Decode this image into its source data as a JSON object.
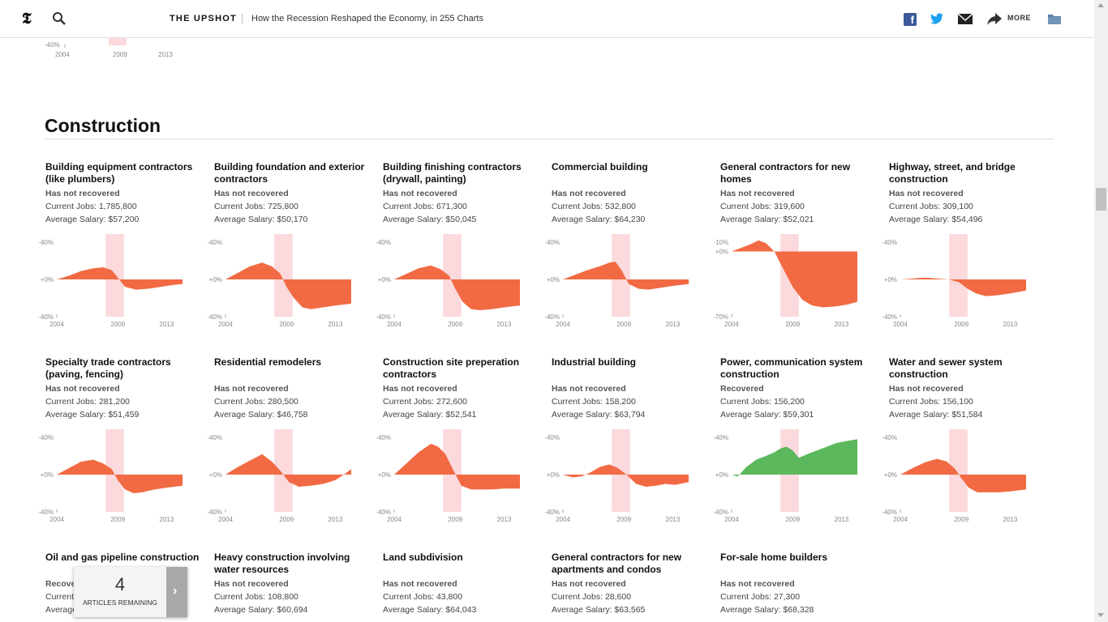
{
  "header": {
    "section": "THE UPSHOT",
    "headline": "How the Recession Reshaped the Economy, in 255 Charts",
    "more_label": "MORE",
    "icons": [
      "nyt-logo-icon",
      "search-icon",
      "facebook-icon",
      "twitter-icon",
      "mail-icon",
      "share-icon",
      "folder-icon"
    ]
  },
  "partial_top": {
    "ytick": "-40%",
    "xticks": [
      "2004",
      "2009",
      "2013"
    ]
  },
  "section": {
    "title": "Construction"
  },
  "colors": {
    "decline": "#f26a43",
    "recovered": "#5cb85c",
    "recession": "#fbd9dc"
  },
  "chart_data": [
    {
      "type": "area",
      "title": "Building equipment contractors (like plumbers)",
      "status": "Has not recovered",
      "jobs": "Current Jobs: 1,785,800",
      "salary": "Average Salary: $57,200",
      "yticks": [
        "+40%",
        "+0%",
        "-40%"
      ],
      "ylim": [
        -40,
        40
      ],
      "xticks": [
        "2004",
        "2009",
        "2013"
      ],
      "xlim": [
        2004,
        2014.3
      ],
      "recession": [
        2008,
        2009.5
      ],
      "x": [
        2004,
        2005,
        2006,
        2007,
        2007.8,
        2008.5,
        2009,
        2009.6,
        2010.5,
        2011.5,
        2012.5,
        2013.5,
        2014.3
      ],
      "values": [
        0,
        4,
        9,
        12,
        13,
        10,
        2,
        -8,
        -11,
        -10,
        -8,
        -6,
        -5
      ]
    },
    {
      "type": "area",
      "title": "Building foundation and exterior contractors",
      "status": "Has not recovered",
      "jobs": "Current Jobs: 725,800",
      "salary": "Average Salary: $50,170",
      "yticks": [
        "+40%",
        "+0%",
        "-40%"
      ],
      "ylim": [
        -40,
        40
      ],
      "xticks": [
        "2004",
        "2009",
        "2013"
      ],
      "xlim": [
        2004,
        2014.3
      ],
      "recession": [
        2008,
        2009.5
      ],
      "x": [
        2004,
        2005,
        2006,
        2007,
        2007.8,
        2008.5,
        2009,
        2009.6,
        2010.3,
        2011,
        2012,
        2013,
        2014.3
      ],
      "values": [
        0,
        7,
        14,
        18,
        14,
        6,
        -8,
        -20,
        -30,
        -32,
        -30,
        -28,
        -26
      ]
    },
    {
      "type": "area",
      "title": "Building finishing contractors (drywall, painting)",
      "status": "Has not recovered",
      "jobs": "Current Jobs: 671,300",
      "salary": "Average Salary: $50,045",
      "yticks": [
        "+40%",
        "+0%",
        "-40%"
      ],
      "ylim": [
        -40,
        40
      ],
      "xticks": [
        "2004",
        "2009",
        "2013"
      ],
      "xlim": [
        2004,
        2014.3
      ],
      "recession": [
        2008,
        2009.5
      ],
      "x": [
        2004,
        2005,
        2006,
        2007,
        2007.8,
        2008.5,
        2009,
        2009.6,
        2010.3,
        2011,
        2012,
        2013,
        2014.3
      ],
      "values": [
        0,
        6,
        12,
        15,
        11,
        4,
        -10,
        -24,
        -32,
        -33,
        -32,
        -30,
        -28
      ]
    },
    {
      "type": "area",
      "title": "Commercial building",
      "status": "Has not recovered",
      "jobs": "Current Jobs: 532,800",
      "salary": "Average Salary: $64,230",
      "yticks": [
        "+40%",
        "+0%",
        "-40%"
      ],
      "ylim": [
        -40,
        40
      ],
      "xticks": [
        "2004",
        "2009",
        "2013"
      ],
      "xlim": [
        2004,
        2014.3
      ],
      "recession": [
        2008,
        2009.5
      ],
      "x": [
        2004,
        2005,
        2006,
        2007,
        2007.8,
        2008.3,
        2008.8,
        2009.4,
        2010.2,
        2011,
        2012,
        2013,
        2014.3
      ],
      "values": [
        0,
        5,
        10,
        14,
        18,
        19,
        10,
        -5,
        -10,
        -11,
        -9,
        -7,
        -5
      ]
    },
    {
      "type": "area",
      "title": "General contractors for new homes",
      "status": "Has not recovered",
      "jobs": "Current Jobs: 319,600",
      "salary": "Average Salary: $52,021",
      "yticks": [
        "+10%",
        "+0%",
        "-70%"
      ],
      "ylim": [
        -70,
        10
      ],
      "xticks": [
        "2004",
        "2009",
        "2013"
      ],
      "xlim": [
        2004,
        2014.3
      ],
      "recession": [
        2008,
        2009.5
      ],
      "x": [
        2004,
        2004.8,
        2005.6,
        2006.2,
        2006.8,
        2007.5,
        2008.2,
        2009,
        2009.8,
        2010.6,
        2011.5,
        2012.5,
        2013.5,
        2014.3
      ],
      "values": [
        0,
        4,
        8,
        12,
        9,
        0,
        -18,
        -38,
        -52,
        -58,
        -60,
        -59,
        -57,
        -54
      ]
    },
    {
      "type": "area",
      "title": "Highway, street, and bridge construction",
      "status": "Has not recovered",
      "jobs": "Current Jobs: 309,100",
      "salary": "Average Salary: $54,496",
      "yticks": [
        "+40%",
        "+0%",
        "-40%"
      ],
      "ylim": [
        -40,
        40
      ],
      "xticks": [
        "2004",
        "2009",
        "2013"
      ],
      "xlim": [
        2004,
        2014.3
      ],
      "recession": [
        2008,
        2009.5
      ],
      "x": [
        2004,
        2005,
        2006,
        2007,
        2008,
        2008.8,
        2009.5,
        2010.2,
        2011,
        2012,
        2013,
        2014.3
      ],
      "values": [
        0,
        1,
        2,
        1,
        0,
        -3,
        -10,
        -15,
        -18,
        -17,
        -15,
        -12
      ]
    },
    {
      "type": "area",
      "title": "Specialty trade contractors (paving, fencing)",
      "status": "Has not recovered",
      "jobs": "Current Jobs: 281,200",
      "salary": "Average Salary: $51,459",
      "yticks": [
        "+40%",
        "+0%",
        "-40%"
      ],
      "ylim": [
        -40,
        40
      ],
      "xticks": [
        "2004",
        "2009",
        "2013"
      ],
      "xlim": [
        2004,
        2014.3
      ],
      "recession": [
        2008,
        2009.5
      ],
      "x": [
        2004,
        2005,
        2006,
        2007,
        2007.8,
        2008.5,
        2009,
        2009.6,
        2010.3,
        2011,
        2012,
        2013,
        2014.3
      ],
      "values": [
        0,
        7,
        14,
        16,
        12,
        6,
        -6,
        -16,
        -20,
        -19,
        -16,
        -14,
        -12
      ]
    },
    {
      "type": "area",
      "title": "Residential remodelers",
      "status": "Has not recovered",
      "jobs": "Current Jobs: 280,500",
      "salary": "Average Salary: $46,758",
      "yticks": [
        "+40%",
        "+0%",
        "-40%"
      ],
      "ylim": [
        -40,
        40
      ],
      "xticks": [
        "2004",
        "2009",
        "2013"
      ],
      "xlim": [
        2004,
        2014.3
      ],
      "recession": [
        2008,
        2009.5
      ],
      "x": [
        2004,
        2005,
        2006,
        2007,
        2007.8,
        2008.5,
        2009.2,
        2010,
        2011,
        2012,
        2013,
        2013.7,
        2014.3
      ],
      "values": [
        0,
        8,
        15,
        22,
        14,
        4,
        -8,
        -13,
        -12,
        -10,
        -6,
        0,
        6
      ]
    },
    {
      "type": "area",
      "title": "Construction site preperation contractors",
      "status": "Has not recovered",
      "jobs": "Current Jobs: 272,600",
      "salary": "Average Salary: $52,541",
      "yticks": [
        "+40%",
        "+0%",
        "-40%"
      ],
      "ylim": [
        -40,
        40
      ],
      "xticks": [
        "2004",
        "2009",
        "2013"
      ],
      "xlim": [
        2004,
        2014.3
      ],
      "recession": [
        2008,
        2009.5
      ],
      "x": [
        2004,
        2005,
        2006,
        2007,
        2007.6,
        2008.2,
        2008.8,
        2009.5,
        2010.3,
        2011,
        2012,
        2013,
        2014.3
      ],
      "values": [
        0,
        12,
        24,
        33,
        30,
        22,
        6,
        -12,
        -16,
        -16,
        -16,
        -15,
        -15
      ]
    },
    {
      "type": "area",
      "title": "Industrial building",
      "status": "Has not recovered",
      "jobs": "Current Jobs: 158,200",
      "salary": "Average Salary: $63,794",
      "yticks": [
        "+40%",
        "+0%",
        "-40%"
      ],
      "ylim": [
        -40,
        40
      ],
      "xticks": [
        "2004",
        "2009",
        "2013"
      ],
      "xlim": [
        2004,
        2014.3
      ],
      "recession": [
        2008,
        2009.5
      ],
      "x": [
        2004,
        2004.8,
        2005.5,
        2006.2,
        2007,
        2007.8,
        2008.5,
        2009.2,
        2010,
        2010.8,
        2011.6,
        2012.4,
        2013.2,
        2014.3
      ],
      "values": [
        0,
        -3,
        -2,
        2,
        8,
        11,
        7,
        0,
        -10,
        -13,
        -12,
        -10,
        -11,
        -8
      ]
    },
    {
      "type": "area",
      "title": "Power, communication system construction",
      "status": "Recovered",
      "jobs": "Current Jobs: 156,200",
      "salary": "Average Salary: $59,301",
      "yticks": [
        "+40%",
        "+0%",
        "-40%"
      ],
      "ylim": [
        -40,
        40
      ],
      "xticks": [
        "2004",
        "2009",
        "2013"
      ],
      "xlim": [
        2004,
        2014.3
      ],
      "recession": [
        2008,
        2009.5
      ],
      "x": [
        2004,
        2004.5,
        2005.2,
        2006,
        2006.8,
        2007.5,
        2008,
        2008.5,
        2009,
        2009.5,
        2010.2,
        2011,
        2011.8,
        2012.6,
        2013.4,
        2014.3
      ],
      "values": [
        0,
        -2,
        8,
        16,
        20,
        24,
        28,
        30,
        26,
        18,
        22,
        26,
        30,
        34,
        36,
        38
      ]
    },
    {
      "type": "area",
      "title": "Water and sewer system construction",
      "status": "Has not recovered",
      "jobs": "Current Jobs: 156,100",
      "salary": "Average Salary: $51,584",
      "yticks": [
        "+40%",
        "+0%",
        "-40%"
      ],
      "ylim": [
        -40,
        40
      ],
      "xticks": [
        "2004",
        "2009",
        "2013"
      ],
      "xlim": [
        2004,
        2014.3
      ],
      "recession": [
        2008,
        2009.5
      ],
      "x": [
        2004,
        2005,
        2006,
        2007,
        2007.8,
        2008.5,
        2009,
        2009.6,
        2010.3,
        2011,
        2012,
        2013,
        2014.3
      ],
      "values": [
        0,
        7,
        13,
        17,
        14,
        6,
        -4,
        -14,
        -19,
        -19,
        -19,
        -18,
        -16
      ]
    },
    {
      "type": "area",
      "title": "Oil and gas pipeline construction",
      "status": "Recovered",
      "jobs": "Current Jobs: ...",
      "salary": "Average Salary: ...",
      "yticks": [],
      "ylim": [
        -40,
        40
      ],
      "xticks": [],
      "xlim": [
        2004,
        2014.3
      ],
      "recession": [
        2008,
        2009.5
      ],
      "x": [],
      "values": []
    },
    {
      "type": "area",
      "title": "Heavy construction involving water resources",
      "status": "Has not recovered",
      "jobs": "Current Jobs: 108,800",
      "salary": "Average Salary: $60,694",
      "yticks": [],
      "ylim": [
        -40,
        40
      ],
      "xticks": [],
      "xlim": [
        2004,
        2014.3
      ],
      "recession": [
        2008,
        2009.5
      ],
      "x": [],
      "values": []
    },
    {
      "type": "area",
      "title": "Land subdivision",
      "status": "Has not recovered",
      "jobs": "Current Jobs: 43,800",
      "salary": "Average Salary: $64,043",
      "yticks": [],
      "ylim": [
        -40,
        40
      ],
      "xticks": [],
      "xlim": [
        2004,
        2014.3
      ],
      "recession": [
        2008,
        2009.5
      ],
      "x": [],
      "values": []
    },
    {
      "type": "area",
      "title": "General contractors for new apartments and condos",
      "status": "Has not recovered",
      "jobs": "Current Jobs: 28,600",
      "salary": "Average Salary: $63,565",
      "yticks": [],
      "ylim": [
        -40,
        40
      ],
      "xticks": [],
      "xlim": [
        2004,
        2014.3
      ],
      "recession": [
        2008,
        2009.5
      ],
      "x": [],
      "values": []
    },
    {
      "type": "area",
      "title": "For-sale home builders",
      "status": "Has not recovered",
      "jobs": "Current Jobs: 27,300",
      "salary": "Average Salary: $68,328",
      "yticks": [],
      "ylim": [
        -40,
        40
      ],
      "xticks": [],
      "xlim": [
        2004,
        2014.3
      ],
      "recession": [
        2008,
        2009.5
      ],
      "x": [],
      "values": []
    }
  ],
  "articles": {
    "count": "4",
    "label": "ARTICLES REMAINING"
  }
}
